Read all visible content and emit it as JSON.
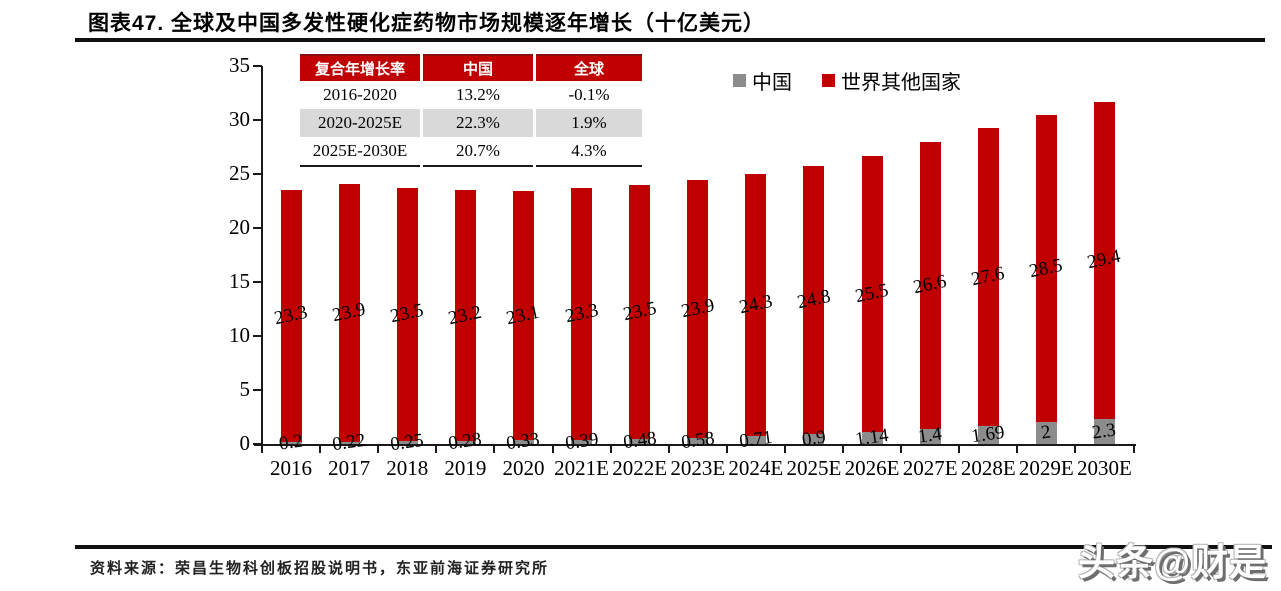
{
  "header": {
    "title": "图表47. 全球及中国多发性硬化症药物市场规模逐年增长（十亿美元）"
  },
  "cagr_table": {
    "headers": [
      "复合年增长率",
      "中国",
      "全球"
    ],
    "rows": [
      [
        "2016-2020",
        "13.2%",
        "-0.1%"
      ],
      [
        "2020-2025E",
        "22.3%",
        "1.9%"
      ],
      [
        "2025E-2030E",
        "20.7%",
        "4.3%"
      ]
    ]
  },
  "legend": [
    {
      "label": "中国",
      "color": "#8C8C8C"
    },
    {
      "label": "世界其他国家",
      "color": "#C00000"
    }
  ],
  "chart_data": {
    "type": "bar",
    "stacked": true,
    "title": "全球及中国多发性硬化症药物市场规模逐年增长（十亿美元）",
    "categories": [
      "2016",
      "2017",
      "2018",
      "2019",
      "2020",
      "2021E",
      "2022E",
      "2023E",
      "2024E",
      "2025E",
      "2026E",
      "2027E",
      "2028E",
      "2029E",
      "2030E"
    ],
    "series": [
      {
        "name": "中国",
        "color": "#8C8C8C",
        "values": [
          0.2,
          0.22,
          0.25,
          0.28,
          0.33,
          0.39,
          0.48,
          0.58,
          0.71,
          0.9,
          1.14,
          1.4,
          1.69,
          2,
          2.3
        ],
        "labels": [
          "0.2",
          "0.22",
          "0.25",
          "0.28",
          "0.33",
          "0.39",
          "0.48",
          "0.58",
          "0.71",
          "0.9",
          "1.14",
          "1.4",
          "1.69",
          "2",
          "2.3"
        ]
      },
      {
        "name": "世界其他国家",
        "color": "#C00000",
        "values": [
          23.3,
          23.9,
          23.5,
          23.2,
          23.1,
          23.3,
          23.5,
          23.9,
          24.3,
          24.8,
          25.5,
          26.6,
          27.6,
          28.5,
          29.4
        ],
        "labels": [
          "23.3",
          "23.9",
          "23.5",
          "23.2",
          "23.1",
          "23.3",
          "23.5",
          "23.9",
          "24.3",
          "24.8",
          "25.5",
          "26.6",
          "27.6",
          "28.5",
          "29.4"
        ]
      }
    ],
    "ylim": [
      0,
      35
    ],
    "ytick_step": 5,
    "yticks": [
      0,
      5,
      10,
      15,
      20,
      25,
      30,
      35
    ],
    "grid": false,
    "legend_position": "top-right"
  },
  "footer": {
    "source": "资料来源：荣昌生物科创板招股说明书，东亚前海证券研究所",
    "watermark": "头条@财是"
  },
  "colors": {
    "accent_red": "#C00000",
    "china_gray": "#8C8C8C",
    "table_alt_row": "#D9D9D9"
  }
}
